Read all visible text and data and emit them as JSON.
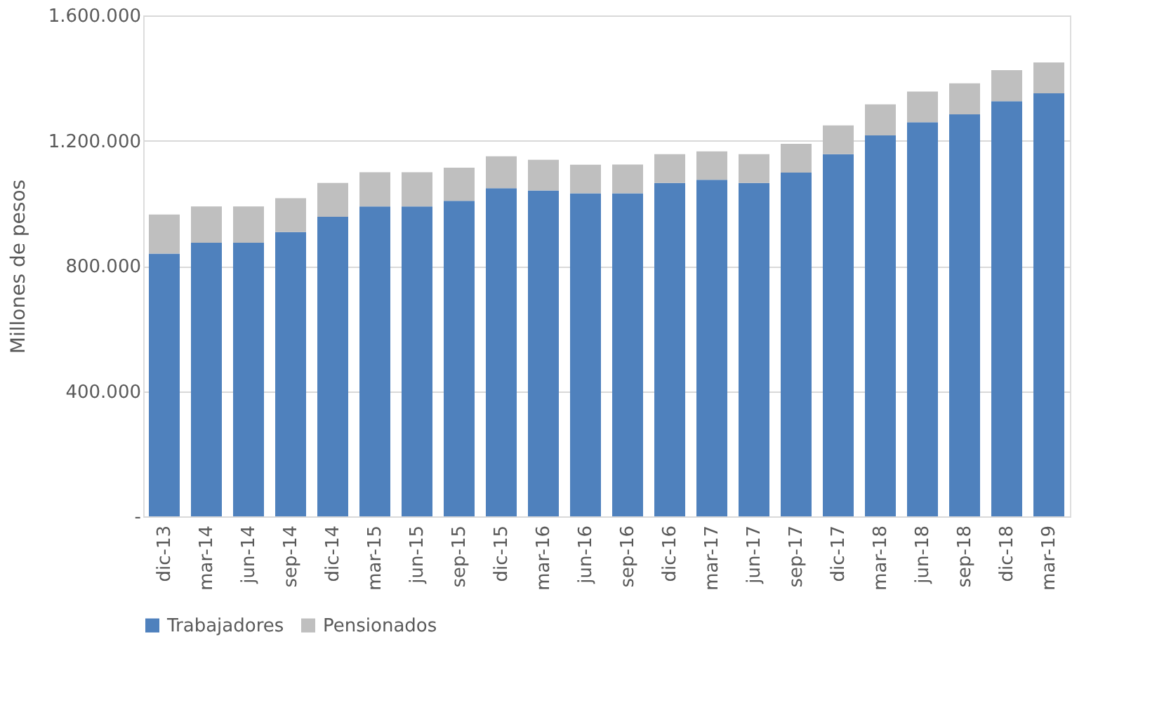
{
  "chart_data": {
    "type": "bar",
    "stacked": true,
    "ylabel": "Millones de pesos",
    "categories": [
      "dic-13",
      "mar-14",
      "jun-14",
      "sep-14",
      "dic-14",
      "mar-15",
      "jun-15",
      "sep-15",
      "dic-15",
      "mar-16",
      "jun-16",
      "sep-16",
      "dic-16",
      "mar-17",
      "jun-17",
      "sep-17",
      "dic-17",
      "mar-18",
      "jun-18",
      "sep-18",
      "dic-18",
      "mar-19"
    ],
    "series": [
      {
        "name": "Trabajadores",
        "color": "#4f81bd",
        "values": [
          839000,
          874000,
          874000,
          908000,
          957000,
          990000,
          990000,
          1008000,
          1048000,
          1041000,
          1032000,
          1032000,
          1065000,
          1075000,
          1065000,
          1098000,
          1157000,
          1217000,
          1259000,
          1284000,
          1326000,
          1351000
        ]
      },
      {
        "name": "Pensionados",
        "color": "#bfbfbf",
        "values": [
          125000,
          116000,
          116000,
          108000,
          108000,
          109000,
          109000,
          106000,
          102000,
          98000,
          91000,
          92000,
          92000,
          91000,
          92000,
          92000,
          92000,
          99000,
          98000,
          99000,
          99000,
          99000
        ]
      }
    ],
    "ylim": [
      0,
      1600000
    ],
    "yticks": [
      {
        "value": 0,
        "label": "-"
      },
      {
        "value": 400000,
        "label": "400.000"
      },
      {
        "value": 800000,
        "label": "800.000"
      },
      {
        "value": 1200000,
        "label": "1.200.000"
      },
      {
        "value": 1600000,
        "label": "1.600.000"
      }
    ],
    "grid": "y",
    "legend": "bottom"
  }
}
